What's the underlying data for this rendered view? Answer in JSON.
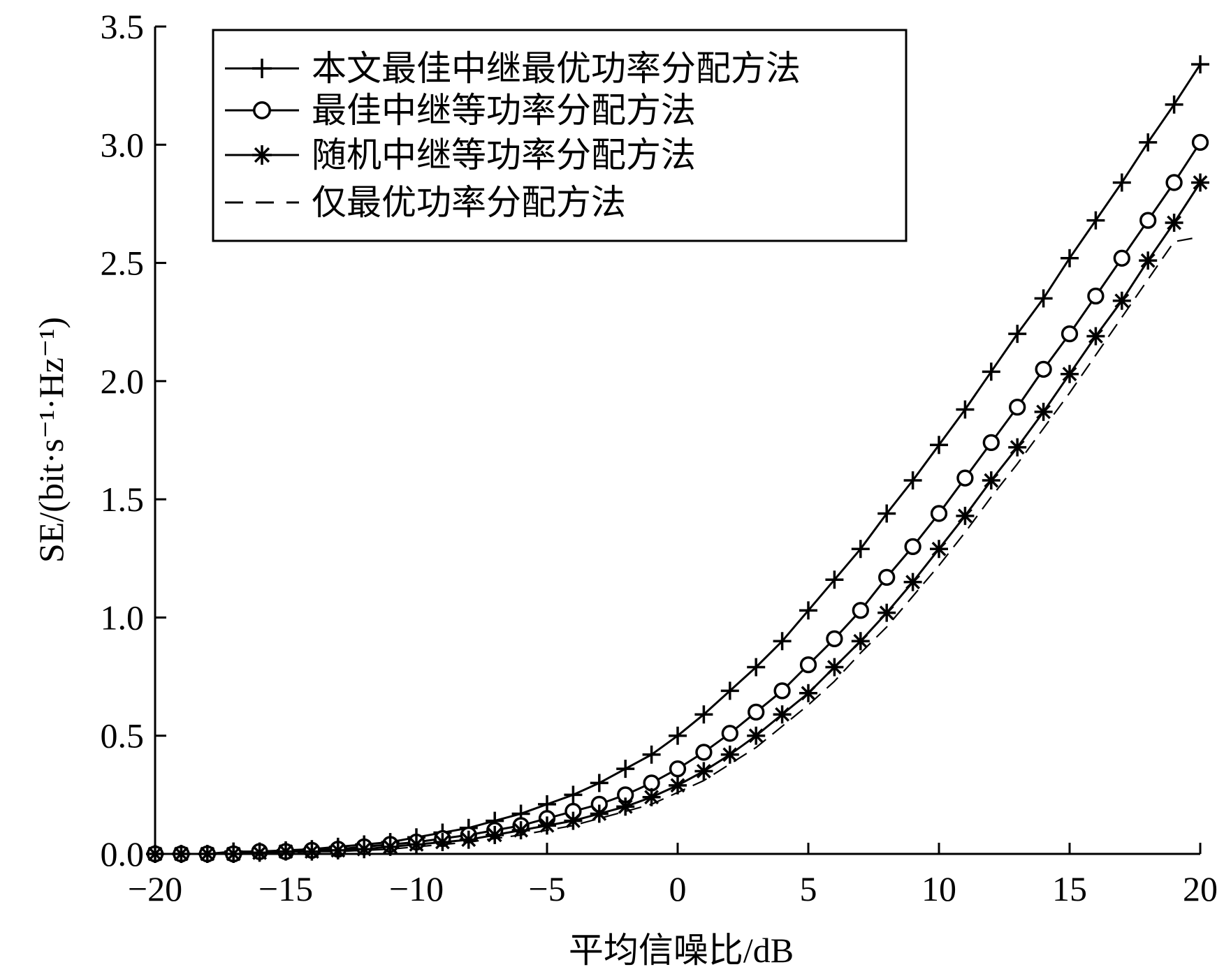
{
  "chart_data": {
    "type": "line",
    "xlabel": "平均信噪比/dB",
    "ylabel": "SE/(bit·s⁻¹·Hz⁻¹)",
    "xlim": [
      -20,
      20
    ],
    "ylim": [
      0,
      3.5
    ],
    "xticks": [
      -20,
      -15,
      -10,
      -5,
      0,
      5,
      10,
      15,
      20
    ],
    "xtick_labels": [
      "−20",
      "−15",
      "−10",
      "−5",
      "0",
      "5",
      "10",
      "15",
      "20"
    ],
    "yticks": [
      0,
      0.5,
      1.0,
      1.5,
      2.0,
      2.5,
      3.0,
      3.5
    ],
    "ytick_labels": [
      "0.0",
      "0.5",
      "1.0",
      "1.5",
      "2.0",
      "2.5",
      "3.0",
      "3.5"
    ],
    "grid": false,
    "legend_position": "top-left",
    "x": [
      -20,
      -19,
      -18,
      -17,
      -16,
      -15,
      -14,
      -13,
      -12,
      -11,
      -10,
      -9,
      -8,
      -7,
      -6,
      -5,
      -4,
      -3,
      -2,
      -1,
      0,
      1,
      2,
      3,
      4,
      5,
      6,
      7,
      8,
      9,
      10,
      11,
      12,
      13,
      14,
      15,
      16,
      17,
      18,
      19,
      20
    ],
    "series": [
      {
        "name": "本文最佳中继最优功率分配方法",
        "marker": "plus",
        "line": "solid",
        "values": [
          0.0,
          0.0,
          0.0,
          0.01,
          0.01,
          0.015,
          0.02,
          0.03,
          0.04,
          0.05,
          0.07,
          0.09,
          0.11,
          0.14,
          0.17,
          0.21,
          0.25,
          0.3,
          0.36,
          0.42,
          0.5,
          0.59,
          0.69,
          0.79,
          0.9,
          1.03,
          1.16,
          1.29,
          1.44,
          1.58,
          1.73,
          1.88,
          2.04,
          2.2,
          2.35,
          2.52,
          2.68,
          2.84,
          3.01,
          3.17,
          3.34
        ]
      },
      {
        "name": "最佳中继等功率分配方法",
        "marker": "circle",
        "line": "solid",
        "values": [
          0.0,
          0.0,
          0.0,
          0.0,
          0.01,
          0.01,
          0.015,
          0.02,
          0.03,
          0.04,
          0.05,
          0.065,
          0.08,
          0.1,
          0.12,
          0.15,
          0.18,
          0.21,
          0.25,
          0.3,
          0.36,
          0.43,
          0.51,
          0.6,
          0.69,
          0.8,
          0.91,
          1.03,
          1.17,
          1.3,
          1.44,
          1.59,
          1.74,
          1.89,
          2.05,
          2.2,
          2.36,
          2.52,
          2.68,
          2.84,
          3.01
        ]
      },
      {
        "name": "随机中继等功率分配方法",
        "marker": "asterisk",
        "line": "solid",
        "values": [
          0.0,
          0.0,
          0.0,
          0.0,
          0.005,
          0.01,
          0.01,
          0.015,
          0.02,
          0.03,
          0.04,
          0.05,
          0.06,
          0.08,
          0.1,
          0.12,
          0.14,
          0.17,
          0.2,
          0.24,
          0.29,
          0.35,
          0.42,
          0.5,
          0.59,
          0.68,
          0.79,
          0.9,
          1.02,
          1.15,
          1.29,
          1.43,
          1.58,
          1.72,
          1.87,
          2.03,
          2.19,
          2.34,
          2.51,
          2.67,
          2.84
        ]
      },
      {
        "name": "仅最优功率分配方法",
        "marker": "none",
        "line": "dashed",
        "values": [
          0.0,
          0.0,
          0.0,
          0.0,
          0.0,
          0.005,
          0.01,
          0.01,
          0.015,
          0.02,
          0.03,
          0.04,
          0.05,
          0.065,
          0.08,
          0.1,
          0.12,
          0.15,
          0.18,
          0.21,
          0.26,
          0.31,
          0.38,
          0.45,
          0.54,
          0.63,
          0.73,
          0.85,
          0.96,
          1.09,
          1.22,
          1.36,
          1.51,
          1.65,
          1.8,
          1.95,
          2.11,
          2.27,
          2.43,
          2.59,
          2.61
        ]
      }
    ]
  }
}
